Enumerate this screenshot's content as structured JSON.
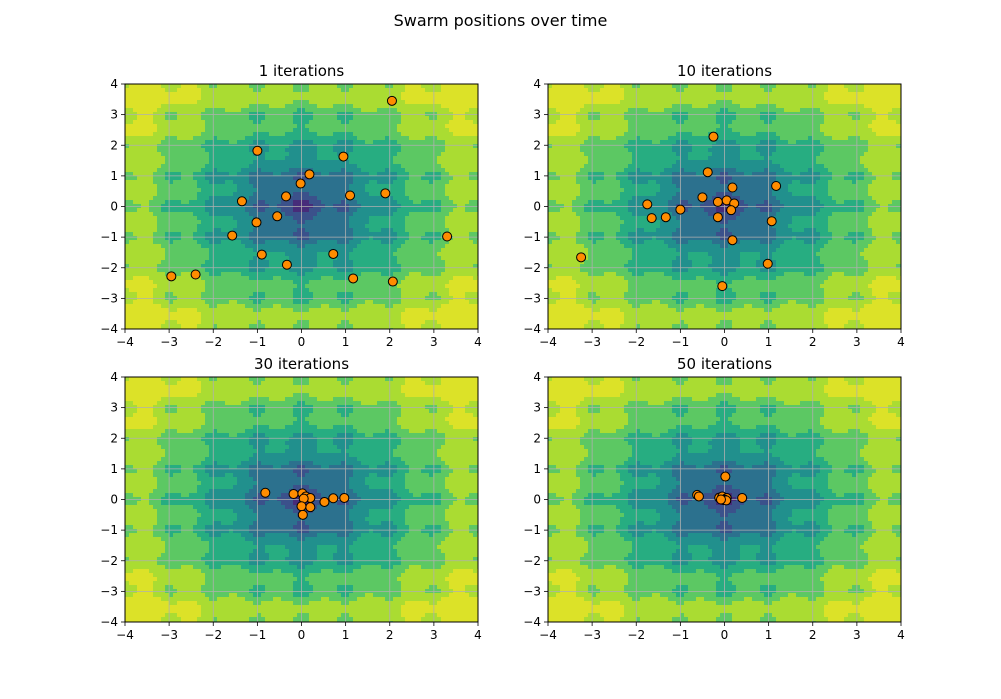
{
  "figure": {
    "title": "Swarm positions over time"
  },
  "chart_data": [
    {
      "type": "scatter",
      "title": "1 iterations",
      "xlim": [
        -4,
        4
      ],
      "ylim": [
        -4,
        4
      ],
      "xticks": [
        -4,
        -3,
        -2,
        -1,
        0,
        1,
        2,
        3,
        4
      ],
      "yticks": [
        -4,
        -3,
        -2,
        -1,
        0,
        1,
        2,
        3,
        4
      ],
      "grid": true,
      "background": "contour",
      "points": [
        [
          2.05,
          3.45
        ],
        [
          -1.0,
          1.82
        ],
        [
          0.95,
          1.63
        ],
        [
          0.18,
          1.05
        ],
        [
          -0.02,
          0.75
        ],
        [
          -0.35,
          0.33
        ],
        [
          1.1,
          0.36
        ],
        [
          1.9,
          0.43
        ],
        [
          -1.35,
          0.17
        ],
        [
          -0.55,
          -0.32
        ],
        [
          -1.02,
          -0.52
        ],
        [
          -1.57,
          -0.95
        ],
        [
          -0.9,
          -1.57
        ],
        [
          0.72,
          -1.55
        ],
        [
          -0.33,
          -1.9
        ],
        [
          3.3,
          -0.98
        ],
        [
          -2.95,
          -2.28
        ],
        [
          -2.4,
          -2.22
        ],
        [
          1.17,
          -2.35
        ],
        [
          2.07,
          -2.45
        ]
      ]
    },
    {
      "type": "scatter",
      "title": "10 iterations",
      "xlim": [
        -4,
        4
      ],
      "ylim": [
        -4,
        4
      ],
      "xticks": [
        -4,
        -3,
        -2,
        -1,
        0,
        1,
        2,
        3,
        4
      ],
      "yticks": [
        -4,
        -3,
        -2,
        -1,
        0,
        1,
        2,
        3,
        4
      ],
      "grid": true,
      "background": "contour",
      "points": [
        [
          -0.25,
          2.28
        ],
        [
          -0.38,
          1.12
        ],
        [
          1.17,
          0.67
        ],
        [
          0.18,
          0.62
        ],
        [
          -0.5,
          0.3
        ],
        [
          -1.75,
          0.07
        ],
        [
          -0.15,
          0.15
        ],
        [
          0.05,
          0.2
        ],
        [
          0.22,
          0.1
        ],
        [
          -1.0,
          -0.1
        ],
        [
          0.15,
          -0.12
        ],
        [
          -1.65,
          -0.38
        ],
        [
          -1.33,
          -0.35
        ],
        [
          -0.15,
          -0.35
        ],
        [
          1.07,
          -0.48
        ],
        [
          0.18,
          -1.1
        ],
        [
          0.98,
          -1.87
        ],
        [
          -3.25,
          -1.66
        ],
        [
          -0.05,
          -2.6
        ]
      ]
    },
    {
      "type": "scatter",
      "title": "30 iterations",
      "xlim": [
        -4,
        4
      ],
      "ylim": [
        -4,
        4
      ],
      "xticks": [
        -4,
        -3,
        -2,
        -1,
        0,
        1,
        2,
        3,
        4
      ],
      "yticks": [
        -4,
        -3,
        -2,
        -1,
        0,
        1,
        2,
        3,
        4
      ],
      "grid": true,
      "background": "contour",
      "points": [
        [
          -0.82,
          0.22
        ],
        [
          -0.18,
          0.18
        ],
        [
          0.02,
          0.2
        ],
        [
          0.1,
          0.1
        ],
        [
          0.2,
          0.05
        ],
        [
          0.05,
          0.03
        ],
        [
          0.72,
          0.04
        ],
        [
          0.97,
          0.05
        ],
        [
          0.52,
          -0.08
        ],
        [
          0.0,
          -0.22
        ],
        [
          0.2,
          -0.25
        ],
        [
          0.03,
          -0.5
        ]
      ]
    },
    {
      "type": "scatter",
      "title": "50 iterations",
      "xlim": [
        -4,
        4
      ],
      "ylim": [
        -4,
        4
      ],
      "xticks": [
        -4,
        -3,
        -2,
        -1,
        0,
        1,
        2,
        3,
        4
      ],
      "yticks": [
        -4,
        -3,
        -2,
        -1,
        0,
        1,
        2,
        3,
        4
      ],
      "grid": true,
      "background": "contour",
      "points": [
        [
          0.02,
          0.75
        ],
        [
          -0.62,
          0.15
        ],
        [
          -0.58,
          0.1
        ],
        [
          0.4,
          0.05
        ],
        [
          -0.12,
          0.06
        ],
        [
          -0.05,
          0.1
        ],
        [
          0.05,
          0.05
        ],
        [
          0.0,
          0.0
        ],
        [
          -0.02,
          -0.02
        ],
        [
          0.04,
          -0.03
        ],
        [
          -0.08,
          0.0
        ]
      ]
    }
  ],
  "colors": {
    "marker_fill": "#ff8c00",
    "marker_edge": "#000000",
    "grid": "#b0b0b0"
  }
}
